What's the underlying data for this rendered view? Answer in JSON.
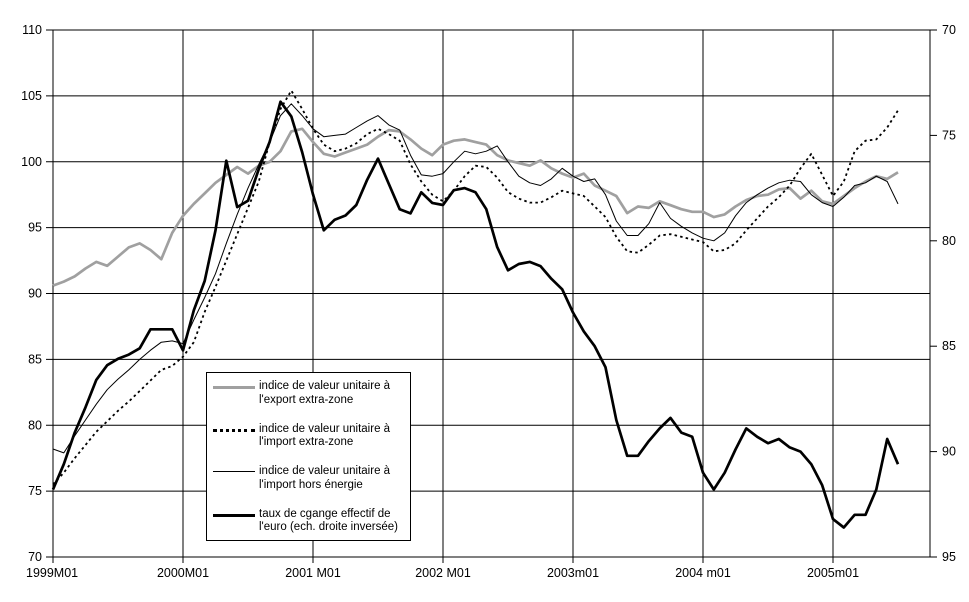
{
  "chart_data": {
    "type": "line",
    "title": "",
    "x_axis": {
      "tick_labels": [
        "1999M01",
        "2000M01",
        "2001 M01",
        "2002 M01",
        "2003m01",
        "2004 m01",
        "2005m01"
      ],
      "start_month": "1999M01",
      "end_month": "2005M07",
      "frequency": "monthly",
      "months_shown": 79
    },
    "left_axis": {
      "min": 70,
      "max": 110,
      "step": 5,
      "tick_labels": [
        "110",
        "105",
        "100",
        "95",
        "90",
        "85",
        "80",
        "75",
        "70"
      ]
    },
    "right_axis": {
      "min": 70,
      "max": 95,
      "step": 5,
      "inverted": true,
      "tick_labels": [
        "70",
        "75",
        "80",
        "85",
        "90",
        "95"
      ]
    },
    "grid": true,
    "legend_position": "inside-lower-left",
    "series": [
      {
        "name": "indice de valeur unitaire à l'export extra-zone",
        "axis": "left",
        "color": "#a0a0a0",
        "style": "thick-solid",
        "values": [
          90.6,
          90.9,
          91.3,
          91.9,
          92.4,
          92.1,
          92.8,
          93.5,
          93.8,
          93.3,
          92.6,
          94.6,
          95.9,
          96.8,
          97.6,
          98.4,
          99.0,
          99.6,
          99.1,
          99.7,
          100.0,
          100.8,
          102.3,
          102.5,
          101.5,
          100.6,
          100.4,
          100.7,
          101.0,
          101.3,
          101.9,
          102.4,
          102.3,
          101.7,
          101.0,
          100.5,
          101.3,
          101.6,
          101.7,
          101.5,
          101.3,
          100.5,
          100.1,
          99.9,
          99.7,
          100.1,
          99.5,
          99.1,
          98.8,
          99.1,
          98.2,
          97.8,
          97.4,
          96.1,
          96.6,
          96.5,
          97.0,
          96.7,
          96.4,
          96.2,
          96.2,
          95.8,
          96.0,
          96.6,
          97.1,
          97.4,
          97.5,
          97.9,
          98.0,
          97.2,
          97.8,
          97.0,
          96.8,
          97.4,
          98.0,
          98.5,
          98.9,
          98.7,
          99.2
        ]
      },
      {
        "name": "indice de valeur unitaire à l'import extra-zone",
        "axis": "left",
        "color": "#000000",
        "style": "dotted",
        "values": [
          75.5,
          76.4,
          77.5,
          78.5,
          79.5,
          80.3,
          81.1,
          81.8,
          82.6,
          83.4,
          84.2,
          84.5,
          85.2,
          86.3,
          88.6,
          90.5,
          92.5,
          94.5,
          96.5,
          98.5,
          101.5,
          104.0,
          105.4,
          104.0,
          102.5,
          101.3,
          100.8,
          101.0,
          101.4,
          102.1,
          102.5,
          102.1,
          101.6,
          99.8,
          98.5,
          97.5,
          97.0,
          97.8,
          98.9,
          99.7,
          99.6,
          98.8,
          97.7,
          97.2,
          96.9,
          96.9,
          97.3,
          97.8,
          97.6,
          97.4,
          96.6,
          95.8,
          94.3,
          93.2,
          93.1,
          93.7,
          94.4,
          94.5,
          94.3,
          94.1,
          93.9,
          93.2,
          93.3,
          93.8,
          94.8,
          95.7,
          96.6,
          97.3,
          98.2,
          99.5,
          100.6,
          99.0,
          97.4,
          98.5,
          100.8,
          101.6,
          101.7,
          102.6,
          103.9
        ]
      },
      {
        "name": "indice de valeur unitaire à l'import hors énergie",
        "axis": "left",
        "color": "#000000",
        "style": "thin-solid",
        "values": [
          78.2,
          77.9,
          79.2,
          80.4,
          81.6,
          82.7,
          83.5,
          84.2,
          85.0,
          85.7,
          86.3,
          86.4,
          86.2,
          88.0,
          89.7,
          91.5,
          93.8,
          96.0,
          98.0,
          99.8,
          101.5,
          103.5,
          104.4,
          103.5,
          102.5,
          101.9,
          102.0,
          102.1,
          102.6,
          103.1,
          103.5,
          102.8,
          102.4,
          100.5,
          99.0,
          98.9,
          99.1,
          100.0,
          100.8,
          100.6,
          100.8,
          101.2,
          100.0,
          98.9,
          98.4,
          98.2,
          98.7,
          99.5,
          98.9,
          98.5,
          98.7,
          97.5,
          95.5,
          94.4,
          94.4,
          95.3,
          96.9,
          95.7,
          95.1,
          94.6,
          94.2,
          94.0,
          94.6,
          95.9,
          96.9,
          97.5,
          98.0,
          98.4,
          98.6,
          98.5,
          97.5,
          96.9,
          96.6,
          97.3,
          98.2,
          98.4,
          98.9,
          98.5,
          96.8
        ]
      },
      {
        "name": "taux de cgange effectif de l'euro (ech. droite inversée)",
        "axis": "right",
        "color": "#000000",
        "style": "thick-solid",
        "values": [
          91.8,
          90.6,
          89.1,
          87.9,
          86.6,
          85.9,
          85.6,
          85.4,
          85.1,
          84.2,
          84.2,
          84.2,
          85.2,
          83.3,
          81.9,
          79.5,
          76.2,
          78.4,
          78.1,
          76.6,
          75.3,
          73.4,
          74.1,
          75.8,
          77.8,
          79.5,
          79.0,
          78.8,
          78.3,
          77.1,
          76.1,
          77.3,
          78.5,
          78.7,
          77.7,
          78.2,
          78.3,
          77.6,
          77.5,
          77.7,
          78.5,
          80.3,
          81.4,
          81.1,
          81.0,
          81.2,
          81.8,
          82.3,
          83.4,
          84.3,
          85.0,
          86.0,
          88.5,
          90.2,
          90.2,
          89.5,
          88.9,
          88.4,
          89.1,
          89.3,
          91.0,
          91.8,
          91.0,
          89.9,
          88.9,
          89.3,
          89.6,
          89.4,
          89.8,
          90.0,
          90.6,
          91.6,
          93.2,
          93.6,
          93.0,
          93.0,
          91.8,
          89.4,
          90.6
        ]
      }
    ]
  }
}
